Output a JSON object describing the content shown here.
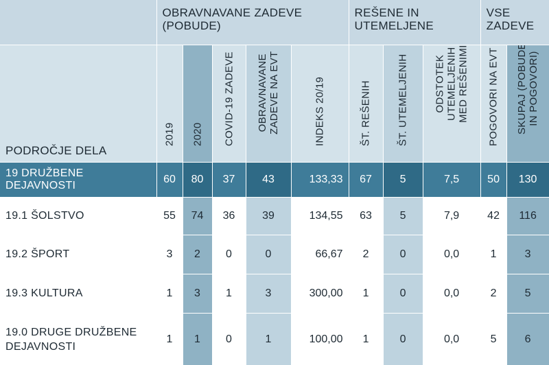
{
  "group_headers": {
    "obravnavane": "OBRAVNAVANE ZADEVE (POBUDE)",
    "resene": "REŠENE IN UTEMELJENE",
    "vse": "VSE ZADEVE"
  },
  "column_headers": {
    "podrocje": "PODROČJE DELA",
    "y2019": "2019",
    "y2020": "2020",
    "covid": "COVID-19 ZADEVE",
    "evt": "OBRAVNAVANE\nZADEVE NA EVT",
    "indeks": "INDEKS 20/19",
    "st_resenih": "ŠT. REŠENIH",
    "st_utemeljenih": "ŠT. UTEMELJENIH",
    "odstotek": "ODSTOTEK\nUTEMELJENIH\nMED REŠENIMI",
    "pogovori": "POGOVORI NA EVT",
    "skupaj": "SKUPAJ (POBUDE\nIN POGOVORI)"
  },
  "rows": [
    {
      "name": "19  DRUŽBENE DEJAVNOSTI",
      "y2019": "60",
      "y2020": "80",
      "covid": "37",
      "evt": "43",
      "indeks": "133,33",
      "st_resenih": "67",
      "st_utemeljenih": "5",
      "odstotek": "7,5",
      "pogovori": "50",
      "skupaj": "130"
    },
    {
      "name": "19.1  ŠOLSTVO",
      "y2019": "55",
      "y2020": "74",
      "covid": "36",
      "evt": "39",
      "indeks": "134,55",
      "st_resenih": "63",
      "st_utemeljenih": "5",
      "odstotek": "7,9",
      "pogovori": "42",
      "skupaj": "116"
    },
    {
      "name": "19.2  ŠPORT",
      "y2019": "3",
      "y2020": "2",
      "covid": "0",
      "evt": "0",
      "indeks": "66,67",
      "st_resenih": "2",
      "st_utemeljenih": "0",
      "odstotek": "0,0",
      "pogovori": "1",
      "skupaj": "3"
    },
    {
      "name": "19.3  KULTURA",
      "y2019": "1",
      "y2020": "3",
      "covid": "1",
      "evt": "3",
      "indeks": "300,00",
      "st_resenih": "1",
      "st_utemeljenih": "0",
      "odstotek": "0,0",
      "pogovori": "2",
      "skupaj": "5"
    },
    {
      "name": "19.0  DRUGE DRUŽBENE\nDEJAVNOSTI",
      "y2019": "1",
      "y2020": "1",
      "covid": "0",
      "evt": "1",
      "indeks": "100,00",
      "st_resenih": "1",
      "st_utemeljenih": "0",
      "odstotek": "0,0",
      "pogovori": "5",
      "skupaj": "6"
    }
  ],
  "colors": {
    "header_light": "#d3e2ea",
    "header_group": "#c7d8e3",
    "column_accent": "#8fb2c4",
    "column_alt": "#bed3df",
    "main_row": "#3f7c99",
    "main_row_accent": "#2f6a86"
  }
}
